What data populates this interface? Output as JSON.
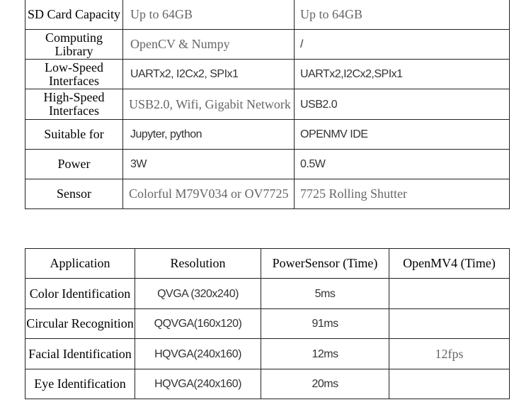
{
  "spec_table": {
    "rows": [
      {
        "label": "SD Card Capacity",
        "powersensor": "Up to 64GB",
        "openmv": "Up to 64GB"
      },
      {
        "label": "Computing Library",
        "powersensor": "OpenCV & Numpy",
        "openmv": "/"
      },
      {
        "label": "Low-Speed Interfaces",
        "powersensor": "UARTx2, I2Cx2, SPIx1",
        "openmv": "UARTx2,I2Cx2,SPIx1"
      },
      {
        "label": "High-Speed Interfaces",
        "powersensor": "USB2.0, Wifi, Gigabit Network",
        "openmv": "USB2.0"
      },
      {
        "label": "Suitable for",
        "powersensor": "Jupyter,  python",
        "openmv": "OPENMV IDE"
      },
      {
        "label": "Power",
        "powersensor": "3W",
        "openmv": "0.5W"
      },
      {
        "label": "Sensor",
        "powersensor": "Colorful M79V034 or OV7725",
        "openmv": "7725 Rolling Shutter"
      }
    ]
  },
  "perf_table": {
    "headers": [
      "Application",
      "Resolution",
      "PowerSensor (Time)",
      "OpenMV4 (Time)"
    ],
    "rows": [
      [
        "Color Identification",
        "QVGA (320x240)",
        "5ms",
        ""
      ],
      [
        "Circular Recognition",
        "QQVGA(160x120)",
        "91ms",
        ""
      ],
      [
        "Facial Identification",
        "HQVGA(240x160)",
        "12ms",
        "12fps"
      ],
      [
        "Eye Identification",
        "HQVGA(240x160)",
        "20ms",
        ""
      ]
    ]
  }
}
